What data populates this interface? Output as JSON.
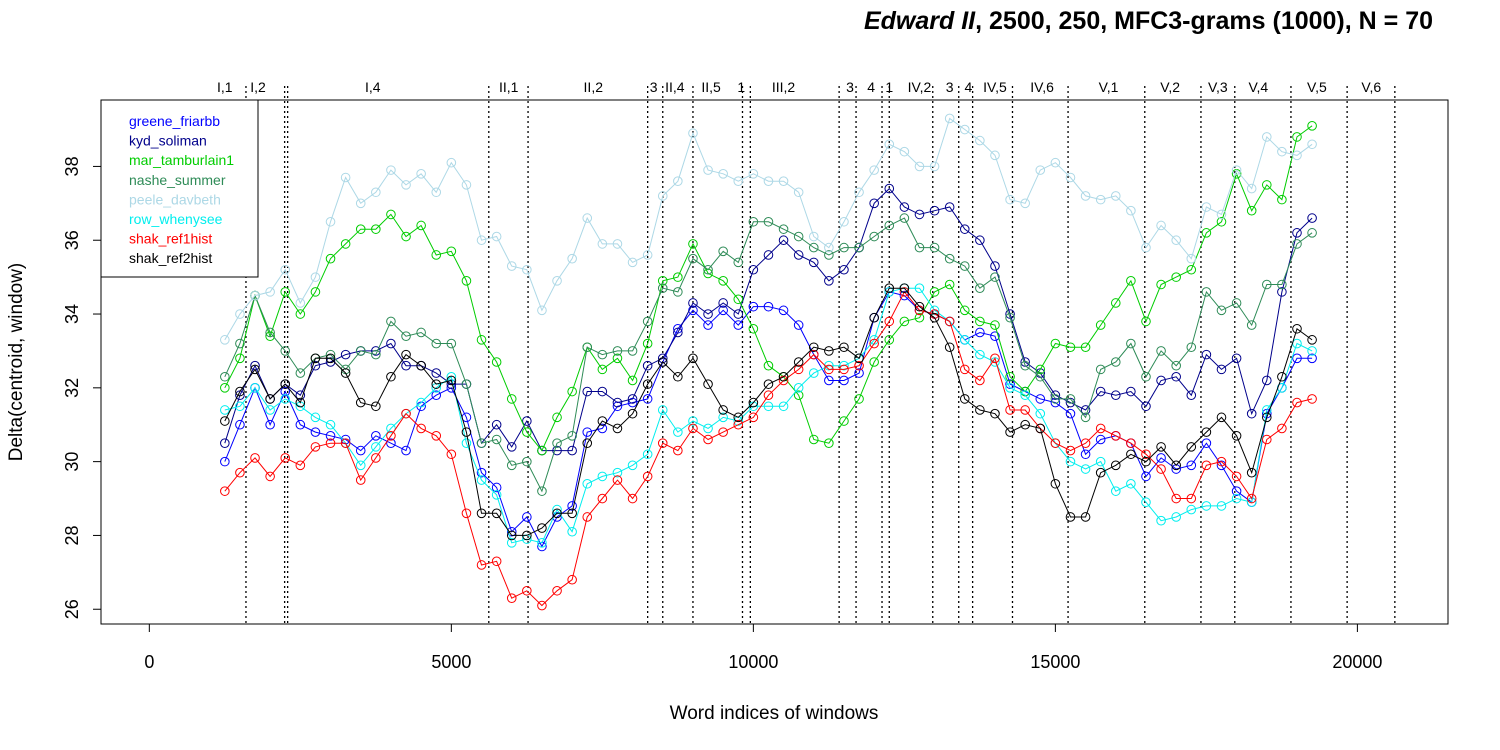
{
  "chart_data": {
    "type": "line",
    "title_italic": "Edward II",
    "title_rest": ", 2500, 250, MFC3-grams (1000), N = 70",
    "xlabel": "Word indices of windows",
    "ylabel": "Delta(centroid, window)",
    "xlim": [
      -800,
      21500
    ],
    "ylim": [
      25.6,
      39.8
    ],
    "x_ticks": [
      0,
      5000,
      10000,
      15000,
      20000
    ],
    "x_tick_labels": [
      "0",
      "5000",
      "10000",
      "15000",
      "20000"
    ],
    "y_ticks": [
      26,
      28,
      30,
      32,
      34,
      36,
      38
    ],
    "y_tick_labels": [
      "26",
      "28",
      "30",
      "32",
      "34",
      "36",
      "38"
    ],
    "legend_position": "top-left",
    "scene_breaks": [
      1600,
      2240,
      2290,
      5620,
      6270,
      8250,
      8500,
      9000,
      9820,
      9950,
      11420,
      11700,
      12130,
      12250,
      12970,
      13400,
      13630,
      14290,
      15210,
      16480,
      17410,
      17970,
      18900,
      19830,
      20620
    ],
    "scene_labels": [
      {
        "x": 1250,
        "label": "I,1"
      },
      {
        "x": 1800,
        "label": "I,2"
      },
      {
        "x": 3700,
        "label": "I,4"
      },
      {
        "x": 5950,
        "label": "II,1"
      },
      {
        "x": 7350,
        "label": "II,2"
      },
      {
        "x": 8350,
        "label": "3"
      },
      {
        "x": 8700,
        "label": "II,4"
      },
      {
        "x": 9300,
        "label": "II,5"
      },
      {
        "x": 9800,
        "label": "1"
      },
      {
        "x": 10500,
        "label": "III,2"
      },
      {
        "x": 11600,
        "label": "3"
      },
      {
        "x": 11950,
        "label": "4"
      },
      {
        "x": 12250,
        "label": "1"
      },
      {
        "x": 12750,
        "label": "IV,2"
      },
      {
        "x": 13250,
        "label": "3"
      },
      {
        "x": 13560,
        "label": "4"
      },
      {
        "x": 14000,
        "label": "IV,5"
      },
      {
        "x": 14780,
        "label": "IV,6"
      },
      {
        "x": 15880,
        "label": "V,1"
      },
      {
        "x": 16900,
        "label": "V,2"
      },
      {
        "x": 17690,
        "label": "V,3"
      },
      {
        "x": 18360,
        "label": "V,4"
      },
      {
        "x": 19330,
        "label": "V,5"
      },
      {
        "x": 20230,
        "label": "V,6"
      }
    ],
    "x": [
      1250,
      1500,
      1750,
      2000,
      2250,
      2500,
      2750,
      3000,
      3250,
      3500,
      3750,
      4000,
      4250,
      4500,
      4750,
      5000,
      5250,
      5500,
      5750,
      6000,
      6250,
      6500,
      6750,
      7000,
      7250,
      7500,
      7750,
      8000,
      8250,
      8500,
      8750,
      9000,
      9250,
      9500,
      9750,
      10000,
      10250,
      10500,
      10750,
      11000,
      11250,
      11500,
      11750,
      12000,
      12250,
      12500,
      12750,
      13000,
      13250,
      13500,
      13750,
      14000,
      14250,
      14500,
      14750,
      15000,
      15250,
      15500,
      15750,
      16000,
      16250,
      16500,
      16750,
      17000,
      17250,
      17500,
      17750,
      18000,
      18250,
      18500,
      18750,
      19000,
      19250
    ],
    "series": [
      {
        "name": "greene_friarbb",
        "color": "#0000ff",
        "values": [
          30.0,
          31.0,
          32.0,
          31.0,
          31.9,
          31.0,
          30.8,
          30.7,
          30.6,
          30.3,
          30.7,
          30.5,
          30.3,
          31.5,
          31.8,
          32.0,
          31.2,
          29.7,
          29.3,
          28.1,
          28.5,
          27.7,
          28.5,
          28.8,
          30.8,
          30.9,
          31.5,
          31.6,
          31.7,
          32.7,
          33.6,
          34.1,
          33.7,
          34.1,
          33.7,
          34.2,
          34.2,
          34.1,
          33.7,
          32.9,
          32.2,
          32.2,
          32.4,
          33.9,
          34.6,
          34.5,
          34.1,
          34.0,
          33.8,
          33.3,
          33.5,
          33.4,
          32.1,
          31.9,
          31.7,
          31.6,
          31.3,
          30.2,
          30.6,
          30.7,
          30.5,
          29.6,
          30.1,
          29.8,
          29.9,
          30.5,
          29.9,
          29.2,
          28.9,
          31.3,
          32.0,
          32.8,
          32.8
        ]
      },
      {
        "name": "kyd_soliman",
        "color": "#00008b",
        "values": [
          30.5,
          31.8,
          32.6,
          31.7,
          32.1,
          31.8,
          32.6,
          32.7,
          32.9,
          33.0,
          33.0,
          33.2,
          32.6,
          32.6,
          32.4,
          32.1,
          32.1,
          30.5,
          31.0,
          30.4,
          31.1,
          30.3,
          30.3,
          30.3,
          31.9,
          31.9,
          31.6,
          31.7,
          32.6,
          32.8,
          33.5,
          34.3,
          34.0,
          34.3,
          34.0,
          35.2,
          35.6,
          36.0,
          35.6,
          35.4,
          34.9,
          35.2,
          35.8,
          37.0,
          37.4,
          36.9,
          36.7,
          36.8,
          36.9,
          36.3,
          36.0,
          35.3,
          34.0,
          32.7,
          32.4,
          31.8,
          31.6,
          31.4,
          31.9,
          31.8,
          31.9,
          31.5,
          32.2,
          32.3,
          31.8,
          32.9,
          32.5,
          32.8,
          31.3,
          32.2,
          34.6,
          36.2,
          36.6
        ]
      },
      {
        "name": "mar_tamburlain1",
        "color": "#00cd00",
        "values": [
          32.0,
          32.8,
          34.5,
          33.4,
          34.6,
          34.0,
          34.6,
          35.5,
          35.9,
          36.3,
          36.3,
          36.7,
          36.1,
          36.4,
          35.6,
          35.7,
          34.9,
          33.3,
          32.7,
          31.7,
          30.8,
          30.3,
          31.2,
          31.9,
          33.1,
          32.5,
          32.8,
          32.2,
          33.2,
          34.9,
          35.0,
          35.9,
          35.1,
          34.9,
          34.4,
          33.6,
          32.6,
          32.3,
          31.8,
          30.6,
          30.5,
          31.1,
          31.7,
          32.7,
          33.3,
          33.8,
          33.9,
          34.6,
          34.8,
          34.1,
          33.8,
          33.7,
          32.3,
          31.9,
          32.5,
          33.2,
          33.1,
          33.1,
          33.7,
          34.3,
          34.9,
          33.8,
          34.8,
          35.0,
          35.2,
          36.2,
          36.5,
          37.8,
          36.8,
          37.5,
          37.1,
          38.8,
          39.1
        ]
      },
      {
        "name": "nashe_summer",
        "color": "#2e8b57",
        "values": [
          32.3,
          33.2,
          34.5,
          33.5,
          33.0,
          32.4,
          32.8,
          32.9,
          32.5,
          33.0,
          32.9,
          33.8,
          33.4,
          33.5,
          33.2,
          33.2,
          32.1,
          30.5,
          30.6,
          29.9,
          30.0,
          29.2,
          30.5,
          30.7,
          33.1,
          32.9,
          33.0,
          33.0,
          33.8,
          34.7,
          34.6,
          35.5,
          35.2,
          35.7,
          35.4,
          36.5,
          36.5,
          36.3,
          36.1,
          35.8,
          35.6,
          35.8,
          35.8,
          36.1,
          36.4,
          36.6,
          35.8,
          35.8,
          35.5,
          35.3,
          34.7,
          35.0,
          33.9,
          32.6,
          32.3,
          31.7,
          31.7,
          31.2,
          32.5,
          32.7,
          33.2,
          32.3,
          33.0,
          32.6,
          33.1,
          34.6,
          34.1,
          34.3,
          33.7,
          34.8,
          34.8,
          35.9,
          36.2
        ]
      },
      {
        "name": "peele_davbeth",
        "color": "#add8e6",
        "values": [
          33.3,
          34.0,
          34.5,
          34.6,
          35.2,
          34.3,
          35.0,
          36.5,
          37.7,
          37.0,
          37.3,
          37.9,
          37.5,
          37.8,
          37.3,
          38.1,
          37.5,
          36.0,
          36.1,
          35.3,
          35.2,
          34.1,
          34.9,
          35.5,
          36.6,
          35.9,
          35.9,
          35.4,
          35.6,
          37.2,
          37.6,
          38.9,
          37.9,
          37.8,
          37.6,
          37.8,
          37.6,
          37.6,
          37.3,
          36.1,
          35.8,
          36.5,
          37.3,
          37.9,
          38.6,
          38.4,
          38.0,
          38.0,
          39.3,
          39.0,
          38.7,
          38.3,
          37.1,
          37.0,
          37.9,
          38.1,
          37.7,
          37.2,
          37.1,
          37.2,
          36.8,
          35.8,
          36.4,
          36.0,
          35.5,
          36.9,
          36.7,
          37.9,
          37.4,
          38.8,
          38.4,
          38.3,
          38.6
        ]
      },
      {
        "name": "row_whenysee",
        "color": "#00eeee",
        "values": [
          31.4,
          31.5,
          32.0,
          31.4,
          31.7,
          31.5,
          31.2,
          31.0,
          30.5,
          29.9,
          30.4,
          30.9,
          31.3,
          31.6,
          32.0,
          32.3,
          30.5,
          29.5,
          29.1,
          27.8,
          27.9,
          27.8,
          28.7,
          28.1,
          29.4,
          29.6,
          29.7,
          29.9,
          30.2,
          31.4,
          30.8,
          31.1,
          30.9,
          31.2,
          31.1,
          31.5,
          31.5,
          31.5,
          32.0,
          32.4,
          32.6,
          32.6,
          32.8,
          33.3,
          34.6,
          34.7,
          34.7,
          34.1,
          33.8,
          33.3,
          32.9,
          32.7,
          32.0,
          31.8,
          31.3,
          30.5,
          30.0,
          29.8,
          30.0,
          29.2,
          29.4,
          28.9,
          28.4,
          28.5,
          28.7,
          28.8,
          28.8,
          29.0,
          28.9,
          31.4,
          32.0,
          33.2,
          33.0
        ]
      },
      {
        "name": "shak_ref1hist",
        "color": "#ff0000",
        "values": [
          29.2,
          29.7,
          30.1,
          29.6,
          30.1,
          29.9,
          30.4,
          30.5,
          30.5,
          29.5,
          30.1,
          30.7,
          31.3,
          30.9,
          30.7,
          30.2,
          28.6,
          27.2,
          27.3,
          26.3,
          26.5,
          26.1,
          26.5,
          26.8,
          28.5,
          29.0,
          29.5,
          29.0,
          29.6,
          30.5,
          30.3,
          30.9,
          30.6,
          30.8,
          31.0,
          31.2,
          31.8,
          32.2,
          32.5,
          32.9,
          32.5,
          32.5,
          32.6,
          33.2,
          33.8,
          34.6,
          34.1,
          34.0,
          33.8,
          32.5,
          32.2,
          32.8,
          31.4,
          31.4,
          30.9,
          30.5,
          30.3,
          30.5,
          30.9,
          30.7,
          30.5,
          30.2,
          29.8,
          29.0,
          29.0,
          29.9,
          30.0,
          29.6,
          29.0,
          30.6,
          30.9,
          31.6,
          31.7
        ]
      },
      {
        "name": "shak_ref2hist",
        "color": "#000000",
        "values": [
          31.1,
          31.9,
          32.5,
          31.7,
          32.1,
          31.6,
          32.8,
          32.8,
          32.4,
          31.6,
          31.5,
          32.3,
          32.9,
          32.6,
          32.1,
          32.2,
          30.8,
          28.6,
          28.6,
          28.0,
          28.0,
          28.2,
          28.6,
          28.6,
          30.5,
          31.1,
          30.9,
          31.3,
          32.1,
          32.7,
          32.3,
          32.8,
          32.1,
          31.4,
          31.2,
          31.6,
          32.1,
          32.3,
          32.7,
          33.1,
          33.0,
          33.1,
          32.8,
          33.9,
          34.7,
          34.7,
          34.2,
          33.9,
          33.1,
          31.7,
          31.4,
          31.3,
          30.8,
          31.0,
          30.9,
          29.4,
          28.5,
          28.5,
          29.7,
          29.9,
          30.2,
          30.0,
          30.4,
          29.9,
          30.4,
          30.8,
          31.2,
          30.7,
          29.7,
          31.2,
          32.3,
          33.6,
          33.3
        ]
      }
    ]
  }
}
